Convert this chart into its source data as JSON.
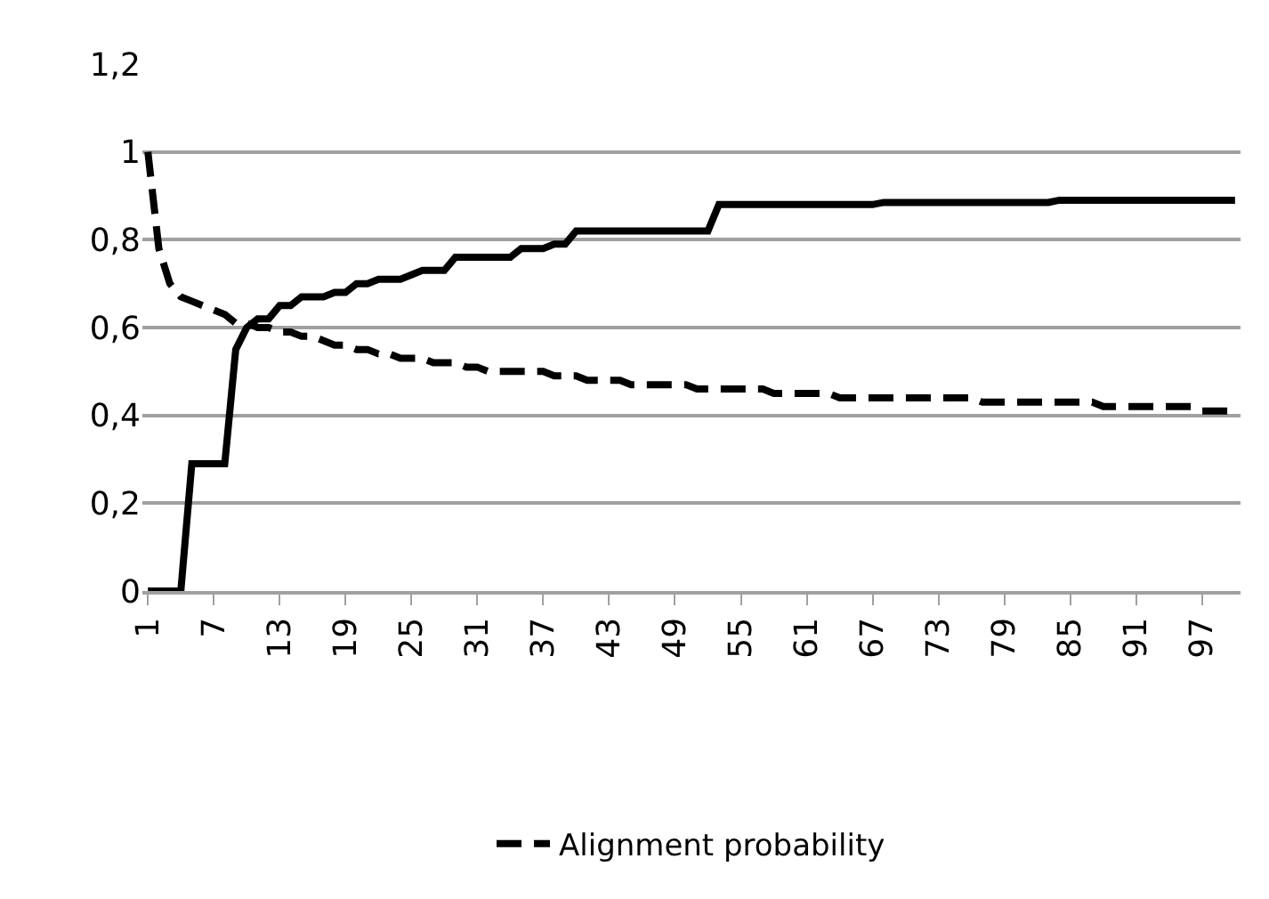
{
  "chart_data": {
    "type": "line",
    "categories": [
      "1",
      null,
      null,
      null,
      null,
      null,
      "7",
      null,
      null,
      null,
      null,
      null,
      "13",
      null,
      null,
      null,
      null,
      null,
      "19",
      null,
      null,
      null,
      null,
      null,
      "25",
      null,
      null,
      null,
      null,
      null,
      "31",
      null,
      null,
      null,
      null,
      null,
      "37",
      null,
      null,
      null,
      null,
      null,
      "43",
      null,
      null,
      null,
      null,
      null,
      "49",
      null,
      null,
      null,
      null,
      null,
      "55",
      null,
      null,
      null,
      null,
      null,
      "61",
      null,
      null,
      null,
      null,
      null,
      "67",
      null,
      null,
      null,
      null,
      null,
      "73",
      null,
      null,
      null,
      null,
      null,
      "79",
      null,
      null,
      null,
      null,
      null,
      "85",
      null,
      null,
      null,
      null,
      null,
      "91",
      null,
      null,
      null,
      null,
      null,
      "97",
      null,
      null,
      null
    ],
    "series": [
      {
        "color": "#000000",
        "line_style": "solid",
        "values": [
          0,
          0,
          0,
          0,
          0.29,
          0.29,
          0.29,
          0.29,
          0.55,
          0.6,
          0.62,
          0.62,
          0.65,
          0.65,
          0.67,
          0.67,
          0.67,
          0.68,
          0.68,
          0.7,
          0.7,
          0.71,
          0.71,
          0.71,
          0.72,
          0.73,
          0.73,
          0.73,
          0.76,
          0.76,
          0.76,
          0.76,
          0.76,
          0.76,
          0.78,
          0.78,
          0.78,
          0.79,
          0.79,
          0.82,
          0.82,
          0.82,
          0.82,
          0.82,
          0.82,
          0.82,
          0.82,
          0.82,
          0.82,
          0.82,
          0.82,
          0.82,
          0.88,
          0.88,
          0.88,
          0.88,
          0.88,
          0.88,
          0.88,
          0.88,
          0.88,
          0.88,
          0.88,
          0.88,
          0.88,
          0.88,
          0.88,
          0.885,
          0.885,
          0.885,
          0.885,
          0.885,
          0.885,
          0.885,
          0.885,
          0.885,
          0.885,
          0.885,
          0.885,
          0.885,
          0.885,
          0.885,
          0.885,
          0.89,
          0.89,
          0.89,
          0.89,
          0.89,
          0.89,
          0.89,
          0.89,
          0.89,
          0.89,
          0.89,
          0.89,
          0.89,
          0.89,
          0.89,
          0.89,
          0.89
        ]
      },
      {
        "name": "Alignment probability",
        "color": "#000000",
        "line_style": "dashed",
        "values": [
          1.0,
          0.78,
          0.7,
          0.67,
          0.66,
          0.65,
          0.64,
          0.63,
          0.61,
          0.61,
          0.6,
          0.6,
          0.59,
          0.59,
          0.58,
          0.58,
          0.57,
          0.56,
          0.56,
          0.55,
          0.55,
          0.54,
          0.54,
          0.53,
          0.53,
          0.53,
          0.52,
          0.52,
          0.52,
          0.51,
          0.51,
          0.5,
          0.5,
          0.5,
          0.5,
          0.5,
          0.5,
          0.49,
          0.49,
          0.49,
          0.48,
          0.48,
          0.48,
          0.48,
          0.47,
          0.47,
          0.47,
          0.47,
          0.47,
          0.47,
          0.46,
          0.46,
          0.46,
          0.46,
          0.46,
          0.46,
          0.46,
          0.45,
          0.45,
          0.45,
          0.45,
          0.45,
          0.45,
          0.44,
          0.44,
          0.44,
          0.44,
          0.44,
          0.44,
          0.44,
          0.44,
          0.44,
          0.44,
          0.44,
          0.44,
          0.44,
          0.43,
          0.43,
          0.43,
          0.43,
          0.43,
          0.43,
          0.43,
          0.43,
          0.43,
          0.43,
          0.43,
          0.42,
          0.42,
          0.42,
          0.42,
          0.42,
          0.42,
          0.42,
          0.42,
          0.42,
          0.41,
          0.41,
          0.41,
          0.41
        ]
      }
    ],
    "ylim": [
      0,
      1.2
    ],
    "yticks": [
      0,
      {
        "value": 0.2,
        "label": "0,2"
      },
      {
        "value": 0.4,
        "label": "0,4"
      },
      {
        "value": 0.6,
        "label": "0,6"
      },
      {
        "value": 0.8,
        "label": "0,8"
      },
      1,
      {
        "value": 1.2,
        "label": "1,2"
      }
    ],
    "grid": "y",
    "legend": "bottom",
    "marker": "none"
  }
}
